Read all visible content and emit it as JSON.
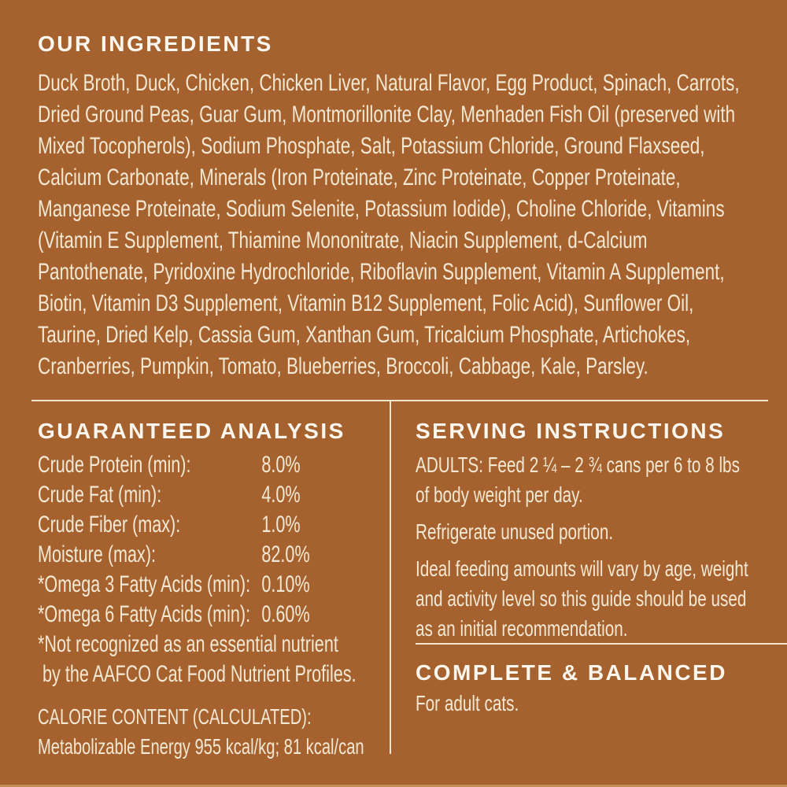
{
  "colors": {
    "background": "#A6622E",
    "heading_text": "#FBF7EE",
    "body_text": "#F2E8D3",
    "divider": "#F2E6CF"
  },
  "ingredients": {
    "title": "OUR INGREDIENTS",
    "text": "Duck Broth, Duck, Chicken, Chicken Liver, Natural Flavor, Egg Product, Spinach, Carrots, Dried Ground Peas, Guar Gum, Montmorillonite Clay, Menhaden Fish Oil (preserved with Mixed Tocopherols), Sodium Phosphate, Salt, Potassium Chloride, Ground Flaxseed, Calcium Carbonate, Minerals (Iron Proteinate, Zinc Proteinate, Copper Proteinate, Manganese Proteinate, Sodium Selenite, Potassium Iodide), Choline Chloride, Vitamins (Vitamin E Supplement, Thiamine Mononitrate, Niacin Supplement, d-Calcium Pantothenate, Pyridoxine Hydrochloride, Riboflavin Supplement, Vitamin A Supplement, Biotin, Vitamin D3 Supplement, Vitamin B12 Supplement, Folic Acid), Sunflower Oil, Taurine, Dried Kelp, Cassia Gum, Xanthan Gum, Tricalcium Phosphate, Artichokes, Cranberries, Pumpkin, Tomato, Blueberries, Broccoli, Cabbage, Kale, Parsley."
  },
  "guaranteed_analysis": {
    "title": "GUARANTEED ANALYSIS",
    "rows": [
      {
        "label": "Crude Protein (min):",
        "value": "8.0%"
      },
      {
        "label": "Crude Fat (min):",
        "value": "4.0%"
      },
      {
        "label": "Crude Fiber (max):",
        "value": "1.0%"
      },
      {
        "label": "Moisture (max):",
        "value": "82.0%"
      },
      {
        "label": "*Omega 3 Fatty Acids (min):",
        "value": "0.10%"
      },
      {
        "label": "*Omega 6 Fatty Acids (min):",
        "value": "0.60%"
      }
    ],
    "footnote": "*Not recognized as an essential nutrient\n by the AAFCO Cat Food Nutrient Profiles.",
    "calorie_heading": "CALORIE CONTENT (CALCULATED):",
    "calorie_text": "Metabolizable Energy 955 kcal/kg; 81 kcal/can"
  },
  "serving_instructions": {
    "title": "SERVING INSTRUCTIONS",
    "paragraphs": [
      "ADULTS: Feed 2 ¼ – 2 ¾ cans per 6 to 8 lbs of body weight per day.",
      "Refrigerate unused portion.",
      "Ideal feeding amounts will vary by age, weight and activity level so this guide should be used as an initial recommendation."
    ]
  },
  "complete_balanced": {
    "title": "COMPLETE & BALANCED",
    "text": "For adult cats."
  }
}
